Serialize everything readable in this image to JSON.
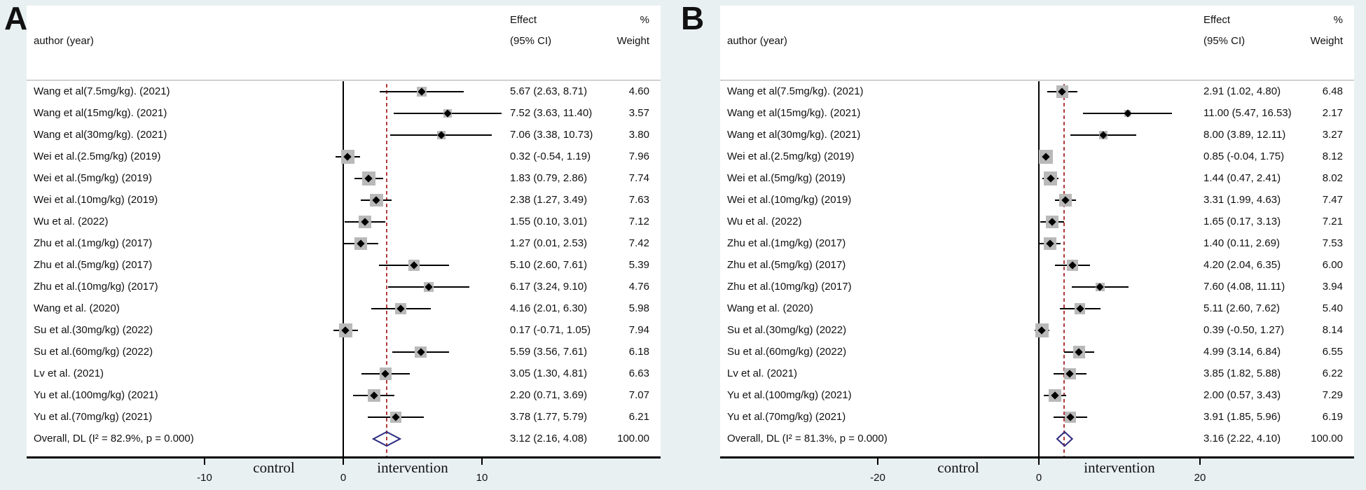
{
  "chart_data": [
    {
      "type": "forest",
      "panel": "A",
      "columns": {
        "author": "author (year)",
        "effect_l1": "Effect",
        "effect_l2": "(95% CI)",
        "weight_l1": "%",
        "weight_l2": "Weight"
      },
      "x_axis": {
        "ticks": [
          -10,
          0,
          10
        ],
        "tick_labels": [
          "-10",
          "0",
          "10"
        ],
        "zone_labels": [
          "control",
          "intervention"
        ]
      },
      "ref_line": 0,
      "studies": [
        {
          "label": "Wang et al(7.5mg/kg). (2021)",
          "est": 5.67,
          "lo": 2.63,
          "hi": 8.71,
          "effect_text": "5.67 (2.63, 8.71)",
          "weight": 4.6,
          "weight_text": "4.60"
        },
        {
          "label": "Wang et al(15mg/kg). (2021)",
          "est": 7.52,
          "lo": 3.63,
          "hi": 11.4,
          "effect_text": "7.52 (3.63, 11.40)",
          "weight": 3.57,
          "weight_text": "3.57"
        },
        {
          "label": "Wang et al(30mg/kg). (2021)",
          "est": 7.06,
          "lo": 3.38,
          "hi": 10.73,
          "effect_text": "7.06 (3.38, 10.73)",
          "weight": 3.8,
          "weight_text": "3.80"
        },
        {
          "label": "Wei et al.(2.5mg/kg) (2019)",
          "est": 0.32,
          "lo": -0.54,
          "hi": 1.19,
          "effect_text": "0.32 (-0.54, 1.19)",
          "weight": 7.96,
          "weight_text": "7.96"
        },
        {
          "label": "Wei et al.(5mg/kg) (2019)",
          "est": 1.83,
          "lo": 0.79,
          "hi": 2.86,
          "effect_text": "1.83 (0.79, 2.86)",
          "weight": 7.74,
          "weight_text": "7.74"
        },
        {
          "label": "Wei et al.(10mg/kg) (2019)",
          "est": 2.38,
          "lo": 1.27,
          "hi": 3.49,
          "effect_text": "2.38 (1.27, 3.49)",
          "weight": 7.63,
          "weight_text": "7.63"
        },
        {
          "label": "Wu et al. (2022)",
          "est": 1.55,
          "lo": 0.1,
          "hi": 3.01,
          "effect_text": "1.55 (0.10, 3.01)",
          "weight": 7.12,
          "weight_text": "7.12"
        },
        {
          "label": "Zhu et al.(1mg/kg) (2017)",
          "est": 1.27,
          "lo": 0.01,
          "hi": 2.53,
          "effect_text": "1.27 (0.01, 2.53)",
          "weight": 7.42,
          "weight_text": "7.42"
        },
        {
          "label": "Zhu et al.(5mg/kg) (2017)",
          "est": 5.1,
          "lo": 2.6,
          "hi": 7.61,
          "effect_text": "5.10 (2.60, 7.61)",
          "weight": 5.39,
          "weight_text": "5.39"
        },
        {
          "label": "Zhu et al.(10mg/kg) (2017)",
          "est": 6.17,
          "lo": 3.24,
          "hi": 9.1,
          "effect_text": "6.17 (3.24, 9.10)",
          "weight": 4.76,
          "weight_text": "4.76"
        },
        {
          "label": "Wang et al. (2020)",
          "est": 4.16,
          "lo": 2.01,
          "hi": 6.3,
          "effect_text": "4.16 (2.01, 6.30)",
          "weight": 5.98,
          "weight_text": "5.98"
        },
        {
          "label": "Su et al.(30mg/kg) (2022)",
          "est": 0.17,
          "lo": -0.71,
          "hi": 1.05,
          "effect_text": "0.17 (-0.71, 1.05)",
          "weight": 7.94,
          "weight_text": "7.94"
        },
        {
          "label": "Su et al.(60mg/kg) (2022)",
          "est": 5.59,
          "lo": 3.56,
          "hi": 7.61,
          "effect_text": "5.59 (3.56, 7.61)",
          "weight": 6.18,
          "weight_text": "6.18"
        },
        {
          "label": "Lv et al. (2021)",
          "est": 3.05,
          "lo": 1.3,
          "hi": 4.81,
          "effect_text": "3.05 (1.30, 4.81)",
          "weight": 6.63,
          "weight_text": "6.63"
        },
        {
          "label": "Yu et al.(100mg/kg) (2021)",
          "est": 2.2,
          "lo": 0.71,
          "hi": 3.69,
          "effect_text": "2.20 (0.71, 3.69)",
          "weight": 7.07,
          "weight_text": "7.07"
        },
        {
          "label": "Yu et al.(70mg/kg) (2021)",
          "est": 3.78,
          "lo": 1.77,
          "hi": 5.79,
          "effect_text": "3.78 (1.77, 5.79)",
          "weight": 6.21,
          "weight_text": "6.21"
        }
      ],
      "overall": {
        "label": "Overall, DL (I² = 82.9%, p = 0.000)",
        "est": 3.12,
        "lo": 2.16,
        "hi": 4.08,
        "effect_text": "3.12 (2.16, 4.08)",
        "weight_text": "100.00"
      }
    },
    {
      "type": "forest",
      "panel": "B",
      "columns": {
        "author": "author (year)",
        "effect_l1": "Effect",
        "effect_l2": "(95% CI)",
        "weight_l1": "%",
        "weight_l2": "Weight"
      },
      "x_axis": {
        "ticks": [
          -20,
          0,
          20
        ],
        "tick_labels": [
          "-20",
          "0",
          "20"
        ],
        "zone_labels": [
          "control",
          "intervention"
        ]
      },
      "ref_line": 0,
      "studies": [
        {
          "label": "Wang et al(7.5mg/kg). (2021)",
          "est": 2.91,
          "lo": 1.02,
          "hi": 4.8,
          "effect_text": "2.91 (1.02, 4.80)",
          "weight": 6.48,
          "weight_text": "6.48"
        },
        {
          "label": "Wang et al(15mg/kg). (2021)",
          "est": 11.0,
          "lo": 5.47,
          "hi": 16.53,
          "effect_text": "11.00 (5.47, 16.53)",
          "weight": 2.17,
          "weight_text": "2.17"
        },
        {
          "label": "Wang et al(30mg/kg). (2021)",
          "est": 8.0,
          "lo": 3.89,
          "hi": 12.11,
          "effect_text": "8.00 (3.89, 12.11)",
          "weight": 3.27,
          "weight_text": "3.27"
        },
        {
          "label": "Wei et al.(2.5mg/kg) (2019)",
          "est": 0.85,
          "lo": -0.04,
          "hi": 1.75,
          "effect_text": "0.85 (-0.04, 1.75)",
          "weight": 8.12,
          "weight_text": "8.12"
        },
        {
          "label": "Wei et al.(5mg/kg) (2019)",
          "est": 1.44,
          "lo": 0.47,
          "hi": 2.41,
          "effect_text": "1.44 (0.47, 2.41)",
          "weight": 8.02,
          "weight_text": "8.02"
        },
        {
          "label": "Wei et al.(10mg/kg) (2019)",
          "est": 3.31,
          "lo": 1.99,
          "hi": 4.63,
          "effect_text": "3.31 (1.99, 4.63)",
          "weight": 7.47,
          "weight_text": "7.47"
        },
        {
          "label": "Wu et al. (2022)",
          "est": 1.65,
          "lo": 0.17,
          "hi": 3.13,
          "effect_text": "1.65 (0.17, 3.13)",
          "weight": 7.21,
          "weight_text": "7.21"
        },
        {
          "label": "Zhu et al.(1mg/kg) (2017)",
          "est": 1.4,
          "lo": 0.11,
          "hi": 2.69,
          "effect_text": "1.40 (0.11, 2.69)",
          "weight": 7.53,
          "weight_text": "7.53"
        },
        {
          "label": "Zhu et al.(5mg/kg) (2017)",
          "est": 4.2,
          "lo": 2.04,
          "hi": 6.35,
          "effect_text": "4.20 (2.04, 6.35)",
          "weight": 6.0,
          "weight_text": "6.00"
        },
        {
          "label": "Zhu et al.(10mg/kg) (2017)",
          "est": 7.6,
          "lo": 4.08,
          "hi": 11.11,
          "effect_text": "7.60 (4.08, 11.11)",
          "weight": 3.94,
          "weight_text": "3.94"
        },
        {
          "label": "Wang et al. (2020)",
          "est": 5.11,
          "lo": 2.6,
          "hi": 7.62,
          "effect_text": "5.11 (2.60, 7.62)",
          "weight": 5.4,
          "weight_text": "5.40"
        },
        {
          "label": "Su et al.(30mg/kg) (2022)",
          "est": 0.39,
          "lo": -0.5,
          "hi": 1.27,
          "effect_text": "0.39 (-0.50, 1.27)",
          "weight": 8.14,
          "weight_text": "8.14"
        },
        {
          "label": "Su et al.(60mg/kg) (2022)",
          "est": 4.99,
          "lo": 3.14,
          "hi": 6.84,
          "effect_text": "4.99 (3.14, 6.84)",
          "weight": 6.55,
          "weight_text": "6.55"
        },
        {
          "label": "Lv et al. (2021)",
          "est": 3.85,
          "lo": 1.82,
          "hi": 5.88,
          "effect_text": "3.85 (1.82, 5.88)",
          "weight": 6.22,
          "weight_text": "6.22"
        },
        {
          "label": "Yu et al.(100mg/kg) (2021)",
          "est": 2.0,
          "lo": 0.57,
          "hi": 3.43,
          "effect_text": "2.00 (0.57, 3.43)",
          "weight": 7.29,
          "weight_text": "7.29"
        },
        {
          "label": "Yu et al.(70mg/kg) (2021)",
          "est": 3.91,
          "lo": 1.85,
          "hi": 5.96,
          "effect_text": "3.91 (1.85, 5.96)",
          "weight": 6.19,
          "weight_text": "6.19"
        }
      ],
      "overall": {
        "label": "Overall, DL (I² = 81.3%, p = 0.000)",
        "est": 3.16,
        "lo": 2.22,
        "hi": 4.1,
        "effect_text": "3.16 (2.22, 4.10)",
        "weight_text": "100.00"
      }
    }
  ],
  "colors": {
    "page_background": "#e9f0f2",
    "panel_background": "#ffffff",
    "reference_line": "#000000",
    "overall_dashed_line": "#b13b3b",
    "diamond_outline": "#2b2b80",
    "weight_box": "#b9b9b9"
  }
}
